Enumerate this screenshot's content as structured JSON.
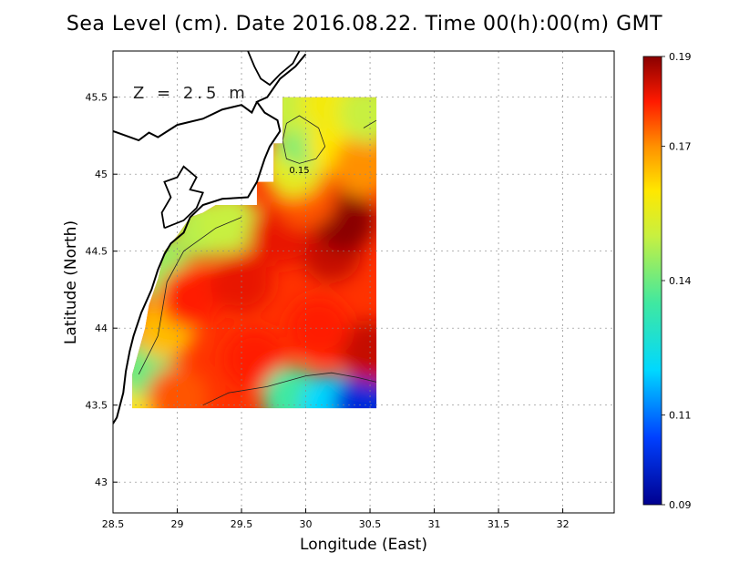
{
  "title": "Sea Level (cm). Date 2016.08.22. Time 00(h):00(m) GMT",
  "depth_label": "Z = 2.5 m",
  "chart_data": {
    "type": "heatmap",
    "title": "Sea Level (cm). Date 2016.08.22. Time 00(h):00(m) GMT",
    "xlabel": "Longitude (East)",
    "ylabel": "Latitude (North)",
    "xlim": [
      28.5,
      32.4
    ],
    "ylim": [
      42.8,
      45.8
    ],
    "x_ticks": [
      "28.5",
      "29",
      "29.5",
      "30",
      "30.5",
      "31",
      "31.5",
      "32"
    ],
    "y_ticks": [
      "43",
      "43.5",
      "44",
      "44.5",
      "45",
      "45.5"
    ],
    "grid": true,
    "field_extent": {
      "lon": [
        28.65,
        30.55
      ],
      "lat": [
        43.48,
        45.5
      ]
    },
    "colorbar": {
      "min": 0.09,
      "max": 0.19,
      "ticks": [
        "0.09",
        "0.11",
        "0.14",
        "0.17",
        "0.19"
      ],
      "stops": [
        {
          "v": 0.09,
          "color": "#00008f"
        },
        {
          "v": 0.105,
          "color": "#0040ff"
        },
        {
          "v": 0.12,
          "color": "#00d8ff"
        },
        {
          "v": 0.135,
          "color": "#40e8a0"
        },
        {
          "v": 0.15,
          "color": "#c8f040"
        },
        {
          "v": 0.16,
          "color": "#ffe800"
        },
        {
          "v": 0.17,
          "color": "#ff9000"
        },
        {
          "v": 0.18,
          "color": "#ff1a00"
        },
        {
          "v": 0.19,
          "color": "#8a0000"
        }
      ]
    },
    "contour_labels": [
      {
        "text": "0.15",
        "lon": 29.95,
        "lat": 45.03
      }
    ],
    "field_points": [
      {
        "lon": 28.7,
        "lat": 43.55,
        "v": 0.16
      },
      {
        "lon": 28.75,
        "lat": 43.75,
        "v": 0.14
      },
      {
        "lon": 28.9,
        "lat": 44.0,
        "v": 0.165
      },
      {
        "lon": 28.85,
        "lat": 44.4,
        "v": 0.145
      },
      {
        "lon": 29.2,
        "lat": 44.65,
        "v": 0.148
      },
      {
        "lon": 29.4,
        "lat": 44.68,
        "v": 0.15
      },
      {
        "lon": 29.1,
        "lat": 44.2,
        "v": 0.18
      },
      {
        "lon": 29.5,
        "lat": 44.3,
        "v": 0.182
      },
      {
        "lon": 29.6,
        "lat": 43.8,
        "v": 0.18
      },
      {
        "lon": 29.0,
        "lat": 43.55,
        "v": 0.175
      },
      {
        "lon": 29.9,
        "lat": 43.55,
        "v": 0.135
      },
      {
        "lon": 30.2,
        "lat": 43.5,
        "v": 0.12
      },
      {
        "lon": 30.45,
        "lat": 43.5,
        "v": 0.1
      },
      {
        "lon": 30.5,
        "lat": 43.85,
        "v": 0.185
      },
      {
        "lon": 30.1,
        "lat": 44.0,
        "v": 0.18
      },
      {
        "lon": 30.2,
        "lat": 44.5,
        "v": 0.185
      },
      {
        "lon": 30.3,
        "lat": 44.7,
        "v": 0.19
      },
      {
        "lon": 29.8,
        "lat": 44.6,
        "v": 0.182
      },
      {
        "lon": 30.0,
        "lat": 44.85,
        "v": 0.175
      },
      {
        "lon": 29.9,
        "lat": 45.05,
        "v": 0.155
      },
      {
        "lon": 30.0,
        "lat": 45.25,
        "v": 0.142
      },
      {
        "lon": 30.25,
        "lat": 45.2,
        "v": 0.16
      },
      {
        "lon": 30.45,
        "lat": 45.05,
        "v": 0.17
      },
      {
        "lon": 29.85,
        "lat": 45.45,
        "v": 0.15
      },
      {
        "lon": 30.2,
        "lat": 45.45,
        "v": 0.158
      },
      {
        "lon": 30.5,
        "lat": 45.4,
        "v": 0.15
      }
    ]
  }
}
